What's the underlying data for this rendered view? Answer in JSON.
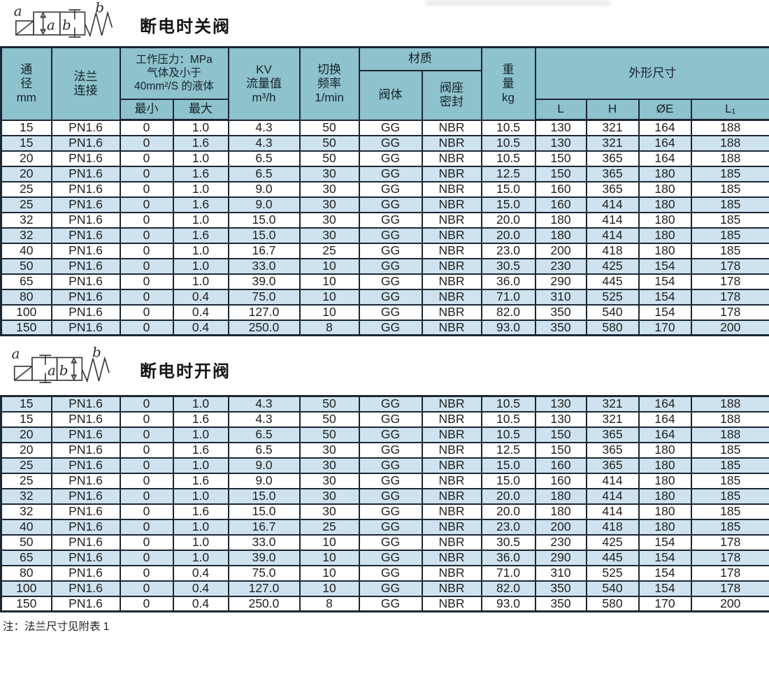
{
  "section1": {
    "title": "断电时关阀",
    "sym": {
      "port_a": "a",
      "box_a": "a",
      "box_b": "b",
      "port_b": "b"
    }
  },
  "section2": {
    "title": "断电时开阀",
    "sym": {
      "port_a": "a",
      "box_a": "a",
      "box_b": "b",
      "port_b": "b"
    }
  },
  "note": "注：法兰尺寸见附表 1",
  "colors": {
    "header_bg": "#8EC2CC",
    "alt_row_bg": "#CEE3EF",
    "border": "#1B2733"
  },
  "table": {
    "header": {
      "diameter": [
        "通",
        "径",
        "mm"
      ],
      "flange": [
        "法兰",
        "连接"
      ],
      "pressure_title": [
        "工作压力：MPa",
        "气体及小于",
        "40mm²/S 的液体"
      ],
      "pressure_min": "最小",
      "pressure_max": "最大",
      "kv": [
        "KV",
        "流量值",
        "m³/h"
      ],
      "freq": [
        "切换",
        "频率",
        "1/min"
      ],
      "material": "材质",
      "material_body": "阀体",
      "material_seal": [
        "阀座",
        "密封"
      ],
      "weight": [
        "重",
        "量",
        "kg"
      ],
      "dimensions": "外形尺寸",
      "dim_cols": [
        "L",
        "H",
        "ØE",
        "L₁"
      ]
    },
    "rows": [
      [
        "15",
        "PN1.6",
        "0",
        "1.0",
        "4.3",
        "50",
        "GG",
        "NBR",
        "10.5",
        "130",
        "321",
        "164",
        "188"
      ],
      [
        "15",
        "PN1.6",
        "0",
        "1.6",
        "4.3",
        "50",
        "GG",
        "NBR",
        "10.5",
        "130",
        "321",
        "164",
        "188"
      ],
      [
        "20",
        "PN1.6",
        "0",
        "1.0",
        "6.5",
        "50",
        "GG",
        "NBR",
        "10.5",
        "150",
        "365",
        "164",
        "188"
      ],
      [
        "20",
        "PN1.6",
        "0",
        "1.6",
        "6.5",
        "30",
        "GG",
        "NBR",
        "12.5",
        "150",
        "365",
        "180",
        "185"
      ],
      [
        "25",
        "PN1.6",
        "0",
        "1.0",
        "9.0",
        "30",
        "GG",
        "NBR",
        "15.0",
        "160",
        "365",
        "180",
        "185"
      ],
      [
        "25",
        "PN1.6",
        "0",
        "1.6",
        "9.0",
        "30",
        "GG",
        "NBR",
        "15.0",
        "160",
        "414",
        "180",
        "185"
      ],
      [
        "32",
        "PN1.6",
        "0",
        "1.0",
        "15.0",
        "30",
        "GG",
        "NBR",
        "20.0",
        "180",
        "414",
        "180",
        "185"
      ],
      [
        "32",
        "PN1.6",
        "0",
        "1.6",
        "15.0",
        "30",
        "GG",
        "NBR",
        "20.0",
        "180",
        "414",
        "180",
        "185"
      ],
      [
        "40",
        "PN1.6",
        "0",
        "1.0",
        "16.7",
        "25",
        "GG",
        "NBR",
        "23.0",
        "200",
        "418",
        "180",
        "185"
      ],
      [
        "50",
        "PN1.6",
        "0",
        "1.0",
        "33.0",
        "10",
        "GG",
        "NBR",
        "30.5",
        "230",
        "425",
        "154",
        "178"
      ],
      [
        "65",
        "PN1.6",
        "0",
        "1.0",
        "39.0",
        "10",
        "GG",
        "NBR",
        "36.0",
        "290",
        "445",
        "154",
        "178"
      ],
      [
        "80",
        "PN1.6",
        "0",
        "0.4",
        "75.0",
        "10",
        "GG",
        "NBR",
        "71.0",
        "310",
        "525",
        "154",
        "178"
      ],
      [
        "100",
        "PN1.6",
        "0",
        "0.4",
        "127.0",
        "10",
        "GG",
        "NBR",
        "82.0",
        "350",
        "540",
        "154",
        "178"
      ],
      [
        "150",
        "PN1.6",
        "0",
        "0.4",
        "250.0",
        "8",
        "GG",
        "NBR",
        "93.0",
        "350",
        "580",
        "170",
        "200"
      ]
    ]
  }
}
